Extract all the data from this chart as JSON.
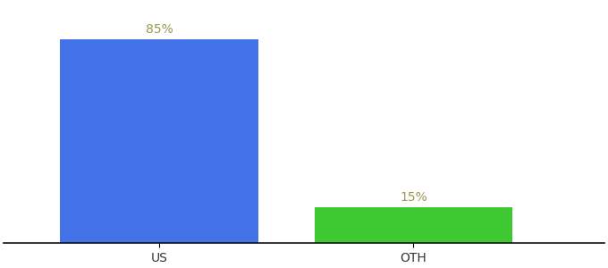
{
  "categories": [
    "US",
    "OTH"
  ],
  "values": [
    85,
    15
  ],
  "bar_colors": [
    "#4472e8",
    "#3ec832"
  ],
  "label_texts": [
    "85%",
    "15%"
  ],
  "label_color": "#9a9a50",
  "ylim": [
    0,
    100
  ],
  "background_color": "#ffffff",
  "label_fontsize": 10,
  "tick_fontsize": 10,
  "bar_width": 0.28,
  "x_positions": [
    0.22,
    0.58
  ],
  "xlim": [
    0.0,
    0.85
  ]
}
